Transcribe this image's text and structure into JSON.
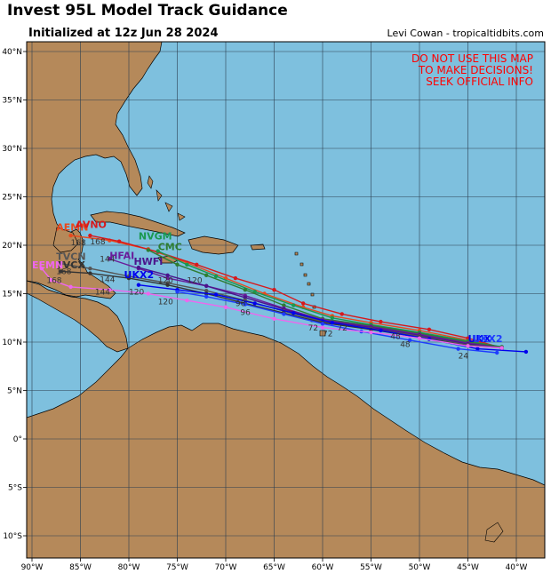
{
  "header": {
    "title": "Invest 95L Model Track Guidance",
    "subtitle": "Initialized at 12z Jun 28 2024",
    "credit": "Levi Cowan - tropicaltidbits.com"
  },
  "warning": [
    "DO NOT USE THIS MAP",
    "TO MAKE DECISIONS!",
    "SEEK OFFICIAL INFO"
  ],
  "colors": {
    "ocean": "#7ec0de",
    "land": "#b5895a",
    "grid": "#2c3e50",
    "warning": "#ff0000"
  },
  "map": {
    "lon_labels": [
      "90°W",
      "85°W",
      "80°W",
      "75°W",
      "70°W",
      "65°W",
      "60°W",
      "55°W",
      "50°W",
      "45°W",
      "40°W"
    ],
    "lat_labels": [
      "40°N",
      "35°N",
      "30°N",
      "25°N",
      "20°N",
      "15°N",
      "10°N",
      "5°N",
      "0°",
      "5°S",
      "10°S"
    ]
  },
  "tracks": [
    {
      "name": "AEMN",
      "color": "#e8491d",
      "points": [
        [
          -41.5,
          9.4
        ],
        [
          -45,
          10.2
        ],
        [
          -50,
          11.2
        ],
        [
          -55,
          12.0
        ],
        [
          -59,
          12.7
        ],
        [
          -62,
          13.6
        ],
        [
          -66,
          15.0
        ],
        [
          -70,
          16.6
        ],
        [
          -74,
          18.2
        ],
        [
          -78,
          19.6
        ],
        [
          -82,
          20.5
        ],
        [
          -86,
          21.0
        ]
      ]
    },
    {
      "name": "AVNO",
      "color": "#d7191c",
      "points": [
        [
          -41.5,
          9.4
        ],
        [
          -45,
          10.4
        ],
        [
          -49,
          11.3
        ],
        [
          -54,
          12.1
        ],
        [
          -58,
          12.9
        ],
        [
          -62,
          14.0
        ],
        [
          -65,
          15.4
        ],
        [
          -69,
          16.6
        ],
        [
          -73,
          18.0
        ],
        [
          -77,
          19.3
        ],
        [
          -81,
          20.4
        ],
        [
          -84,
          21.0
        ]
      ]
    },
    {
      "name": "NVGM",
      "color": "#1a9850",
      "points": [
        [
          -41.5,
          9.5
        ],
        [
          -45,
          10.1
        ],
        [
          -50,
          11.0
        ],
        [
          -55,
          11.8
        ],
        [
          -59,
          12.5
        ],
        [
          -63,
          13.8
        ],
        [
          -67,
          15.2
        ],
        [
          -71,
          16.8
        ],
        [
          -74,
          18.0
        ],
        [
          -77,
          19.4
        ]
      ]
    },
    {
      "name": "CMC",
      "color": "#2e7d32",
      "points": [
        [
          -41.5,
          9.5
        ],
        [
          -45,
          10.0
        ],
        [
          -50,
          10.9
        ],
        [
          -55,
          11.7
        ],
        [
          -60,
          12.4
        ],
        [
          -64,
          13.8
        ],
        [
          -68,
          15.4
        ],
        [
          -72,
          16.9
        ],
        [
          -75,
          18.0
        ],
        [
          -78,
          19.5
        ]
      ]
    },
    {
      "name": "HFAI",
      "color": "#6a1b9a",
      "points": [
        [
          -41.5,
          9.4
        ],
        [
          -45,
          9.9
        ],
        [
          -50,
          10.8
        ],
        [
          -55,
          11.6
        ],
        [
          -60,
          12.3
        ],
        [
          -64,
          13.5
        ],
        [
          -68,
          14.8
        ],
        [
          -72,
          15.8
        ],
        [
          -76,
          16.6
        ],
        [
          -79,
          17.6
        ],
        [
          -82,
          18.6
        ]
      ]
    },
    {
      "name": "HWFI",
      "color": "#4a148c",
      "points": [
        [
          -41.5,
          9.4
        ],
        [
          -45,
          9.8
        ],
        [
          -50,
          10.7
        ],
        [
          -55,
          11.5
        ],
        [
          -60,
          12.2
        ],
        [
          -64,
          13.4
        ],
        [
          -68,
          14.6
        ],
        [
          -72,
          15.8
        ],
        [
          -76,
          16.9
        ],
        [
          -79,
          17.7
        ]
      ]
    },
    {
      "name": "TVCN",
      "color": "#555555",
      "points": [
        [
          -41.5,
          9.4
        ],
        [
          -45,
          9.7
        ],
        [
          -50,
          10.6
        ],
        [
          -55,
          11.4
        ],
        [
          -60,
          12.1
        ],
        [
          -64,
          13.2
        ],
        [
          -68,
          14.3
        ],
        [
          -72,
          15.3
        ],
        [
          -76,
          16.1
        ],
        [
          -80,
          16.8
        ],
        [
          -84,
          17.6
        ],
        [
          -87,
          18.1
        ]
      ]
    },
    {
      "name": "TVCX",
      "color": "#333333",
      "points": [
        [
          -41.5,
          9.4
        ],
        [
          -45,
          9.6
        ],
        [
          -50,
          10.5
        ],
        [
          -55,
          11.3
        ],
        [
          -60,
          12.0
        ],
        [
          -64,
          13.0
        ],
        [
          -68,
          14.0
        ],
        [
          -72,
          15.0
        ],
        [
          -76,
          15.9
        ],
        [
          -80,
          16.6
        ],
        [
          -84,
          17.1
        ],
        [
          -87,
          17.3
        ]
      ]
    },
    {
      "name": "UKX",
      "color": "#0000ee",
      "points": [
        [
          -39,
          9.0
        ],
        [
          -44,
          9.3
        ],
        [
          -49,
          10.3
        ],
        [
          -54,
          11.2
        ],
        [
          -59,
          12.0
        ],
        [
          -63,
          13.0
        ],
        [
          -67,
          14.0
        ],
        [
          -71,
          14.9
        ],
        [
          -75,
          15.4
        ],
        [
          -79,
          15.9
        ]
      ]
    },
    {
      "name": "UKX2",
      "color": "#1e3cff",
      "points": [
        [
          -42,
          8.9
        ],
        [
          -46,
          9.3
        ],
        [
          -51,
          10.2
        ],
        [
          -56,
          11.1
        ],
        [
          -60,
          11.9
        ],
        [
          -64,
          12.9
        ],
        [
          -68,
          13.9
        ],
        [
          -72,
          14.7
        ],
        [
          -75,
          15.2
        ]
      ]
    },
    {
      "name": "EEMN",
      "color": "#ee66ee",
      "points": [
        [
          -41.5,
          9.4
        ],
        [
          -45,
          9.6
        ],
        [
          -50,
          10.4
        ],
        [
          -55,
          11.0
        ],
        [
          -60,
          11.5
        ],
        [
          -65,
          12.4
        ],
        [
          -70,
          13.6
        ],
        [
          -74,
          14.3
        ],
        [
          -78,
          15.0
        ],
        [
          -82,
          15.4
        ],
        [
          -86,
          15.7
        ],
        [
          -88,
          16.4
        ],
        [
          -89,
          17.6
        ]
      ]
    }
  ],
  "model_labels": [
    {
      "text": "AEMN",
      "color": "#e8491d",
      "lon": -87.5,
      "lat": 21.5
    },
    {
      "text": "AVNO",
      "color": "#d7191c",
      "lon": -85.5,
      "lat": 21.8
    },
    {
      "text": "NVGM",
      "color": "#1a9850",
      "lon": -79,
      "lat": 20.6
    },
    {
      "text": "CMC",
      "color": "#2e7d32",
      "lon": -77,
      "lat": 19.5
    },
    {
      "text": "HFAI",
      "color": "#6a1b9a",
      "lon": -82,
      "lat": 18.6
    },
    {
      "text": "HWFI",
      "color": "#4a148c",
      "lon": -79.5,
      "lat": 18.0
    },
    {
      "text": "TVCN",
      "color": "#555555",
      "lon": -87.5,
      "lat": 18.5
    },
    {
      "text": "TVCX",
      "color": "#333333",
      "lon": -87.5,
      "lat": 17.6
    },
    {
      "text": "UKX2",
      "color": "#0000ee",
      "lon": -80.5,
      "lat": 16.6
    },
    {
      "text": "EEMN",
      "color": "#ee66ee",
      "lon": -90,
      "lat": 17.6
    },
    {
      "text": "UKX",
      "color": "#0000ee",
      "lon": -45,
      "lat": 10.0
    },
    {
      "text": "UKX2",
      "color": "#1e3cff",
      "lon": -44.5,
      "lat": 10.0
    }
  ],
  "hour_labels": [
    {
      "text": "168",
      "color": "#333",
      "lon": -86,
      "lat": 20.0
    },
    {
      "text": "168",
      "color": "#333",
      "lon": -84,
      "lat": 20.1
    },
    {
      "text": "168",
      "color": "#333",
      "lon": -87.5,
      "lat": 17.0
    },
    {
      "text": "168",
      "color": "#333",
      "lon": -88.5,
      "lat": 16.1
    },
    {
      "text": "144",
      "color": "#333",
      "lon": -83,
      "lat": 18.3
    },
    {
      "text": "144",
      "color": "#333",
      "lon": -83,
      "lat": 16.2
    },
    {
      "text": "144",
      "color": "#333",
      "lon": -83.5,
      "lat": 14.9
    },
    {
      "text": "120",
      "color": "#333",
      "lon": -80,
      "lat": 14.9
    },
    {
      "text": "120",
      "color": "#333",
      "lon": -77,
      "lat": 13.9
    },
    {
      "text": "120",
      "color": "#333",
      "lon": -77,
      "lat": 16.1
    },
    {
      "text": "120",
      "color": "#333",
      "lon": -74,
      "lat": 16.1
    },
    {
      "text": "96",
      "color": "#333",
      "lon": -69,
      "lat": 13.7
    },
    {
      "text": "96",
      "color": "#333",
      "lon": -68.5,
      "lat": 12.8
    },
    {
      "text": "72",
      "color": "#333",
      "lon": -61.5,
      "lat": 11.2
    },
    {
      "text": "72",
      "color": "#333",
      "lon": -60,
      "lat": 10.6
    },
    {
      "text": "72",
      "color": "#333",
      "lon": -58.5,
      "lat": 11.2
    },
    {
      "text": "48",
      "color": "#333",
      "lon": -53,
      "lat": 10.3
    },
    {
      "text": "48",
      "color": "#333",
      "lon": -52,
      "lat": 9.5
    },
    {
      "text": "24",
      "color": "#333",
      "lon": -46,
      "lat": 8.3
    }
  ]
}
